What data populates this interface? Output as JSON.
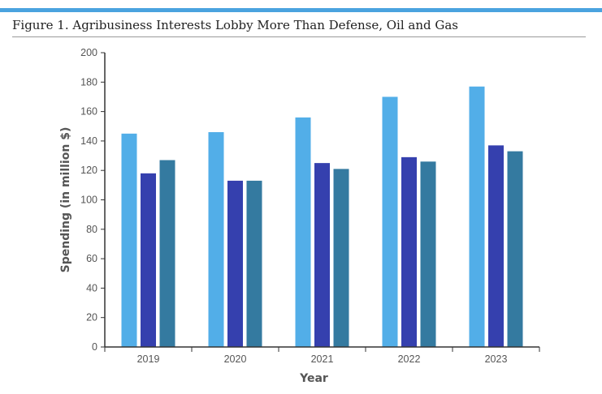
{
  "figure": {
    "title": "Figure 1. Agribusiness Interests Lobby More Than Defense, Oil and Gas",
    "accent_color": "#4aa3df"
  },
  "chart_data": {
    "type": "bar",
    "categories": [
      "2019",
      "2020",
      "2021",
      "2022",
      "2023"
    ],
    "series": [
      {
        "values": [
          145,
          146,
          156,
          170,
          177
        ],
        "color": "#52aee8"
      },
      {
        "values": [
          118,
          113,
          125,
          129,
          137
        ],
        "color": "#3540ae"
      },
      {
        "values": [
          127,
          113,
          121,
          126,
          133
        ],
        "color": "#347aa0"
      }
    ],
    "xlabel": "Year",
    "ylabel": "Spending (in million $)",
    "ylim": [
      0,
      200
    ],
    "yticks": [
      0,
      20,
      40,
      60,
      80,
      100,
      120,
      140,
      160,
      180,
      200
    ],
    "grid": false,
    "legend": "none"
  }
}
